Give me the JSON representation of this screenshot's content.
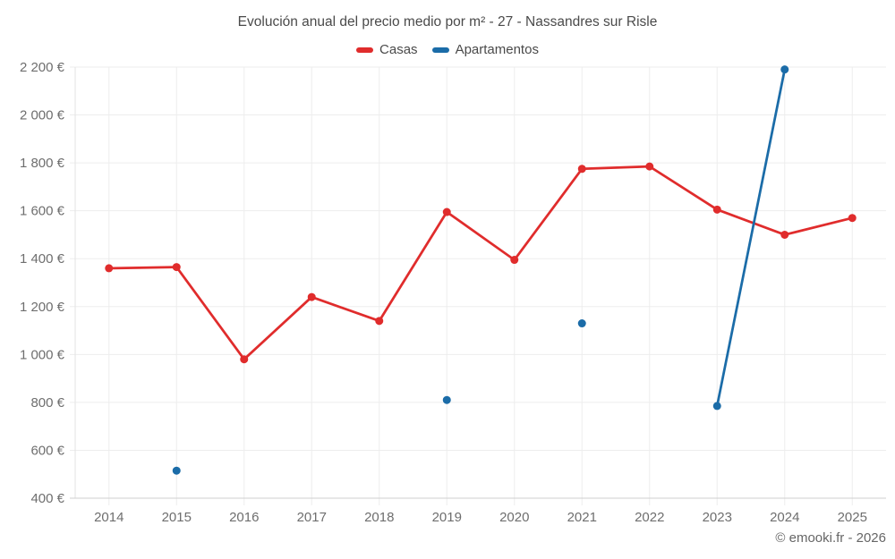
{
  "title": "Evolución anual del precio medio por m² - 27 - Nassandres sur Risle",
  "footer": "© emooki.fr - 2026",
  "legend": [
    {
      "label": "Casas",
      "color": "#e02c2c"
    },
    {
      "label": "Apartamentos",
      "color": "#1b6ca8"
    }
  ],
  "colors": {
    "grid": "#ededed",
    "axis_bottom": "#cfcfcf",
    "axis_left": "#e3e3e3",
    "tick_label": "#6e6e6e",
    "title_text": "#4a4a4a",
    "casas_red": "#e02c2c",
    "apartamentos_blue": "#1b6ca8"
  },
  "chart_data": {
    "type": "line",
    "title": "Evolución anual del precio medio por m² - 27 - Nassandres sur Risle",
    "xlabel": "",
    "ylabel": "",
    "grid": true,
    "legend_position": "top",
    "categories": [
      "2014",
      "2015",
      "2016",
      "2017",
      "2018",
      "2019",
      "2020",
      "2021",
      "2022",
      "2023",
      "2024",
      "2025"
    ],
    "series": [
      {
        "name": "Casas",
        "color": "#e02c2c",
        "values": [
          1360,
          1365,
          980,
          1240,
          1140,
          1595,
          1395,
          1775,
          1785,
          1605,
          1500,
          1570
        ]
      },
      {
        "name": "Apartamentos",
        "color": "#1b6ca8",
        "values": [
          null,
          515,
          null,
          null,
          null,
          810,
          null,
          1130,
          null,
          785,
          2190,
          null
        ]
      }
    ],
    "ylim": [
      400,
      2200
    ],
    "y_ticks": [
      {
        "value": 400,
        "label": "400 €"
      },
      {
        "value": 600,
        "label": "600 €"
      },
      {
        "value": 800,
        "label": "800 €"
      },
      {
        "value": 1000,
        "label": "1 000 €"
      },
      {
        "value": 1200,
        "label": "1 200 €"
      },
      {
        "value": 1400,
        "label": "1 400 €"
      },
      {
        "value": 1600,
        "label": "1 600 €"
      },
      {
        "value": 1800,
        "label": "1 800 €"
      },
      {
        "value": 2000,
        "label": "2 000 €"
      },
      {
        "value": 2200,
        "label": "2 200 €"
      }
    ]
  }
}
